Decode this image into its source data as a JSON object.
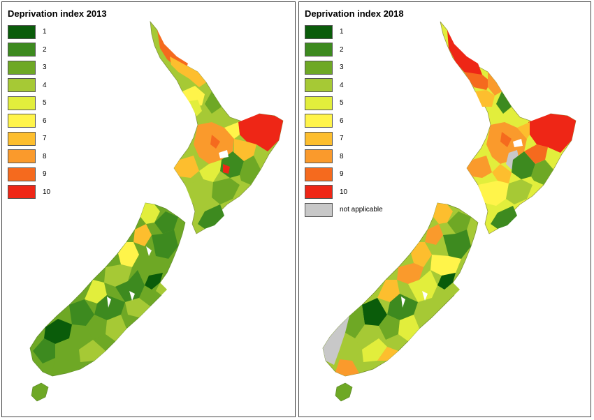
{
  "maps": [
    {
      "title": "Deprivation index 2013",
      "legend": [
        {
          "label": "1",
          "color": "#0a5c0a"
        },
        {
          "label": "2",
          "color": "#3d8a1f"
        },
        {
          "label": "3",
          "color": "#6ea825"
        },
        {
          "label": "4",
          "color": "#a6c935"
        },
        {
          "label": "5",
          "color": "#e2ee3c"
        },
        {
          "label": "6",
          "color": "#fff44a"
        },
        {
          "label": "7",
          "color": "#fdbe2e"
        },
        {
          "label": "8",
          "color": "#fa9a2c"
        },
        {
          "label": "9",
          "color": "#f56a1e"
        },
        {
          "label": "10",
          "color": "#ee2616"
        }
      ]
    },
    {
      "title": "Deprivation index 2018",
      "legend": [
        {
          "label": "1",
          "color": "#0a5c0a"
        },
        {
          "label": "2",
          "color": "#3d8a1f"
        },
        {
          "label": "3",
          "color": "#6ea825"
        },
        {
          "label": "4",
          "color": "#a6c935"
        },
        {
          "label": "5",
          "color": "#e2ee3c"
        },
        {
          "label": "6",
          "color": "#fff44a"
        },
        {
          "label": "7",
          "color": "#fdbe2e"
        },
        {
          "label": "8",
          "color": "#fa9a2c"
        },
        {
          "label": "9",
          "color": "#f56a1e"
        },
        {
          "label": "10",
          "color": "#ee2616"
        },
        {
          "label": "not applicable",
          "color": "#c8c8c8"
        }
      ]
    }
  ]
}
